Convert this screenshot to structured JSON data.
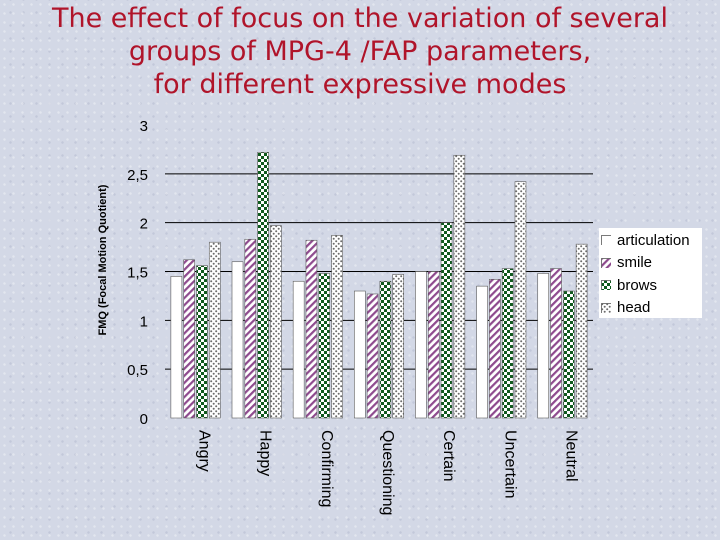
{
  "title_lines": [
    "The effect of focus on the variation of several",
    "groups of MPG-4 /FAP parameters,",
    "for different expressive modes"
  ],
  "chart_data": {
    "type": "bar",
    "ylabel": "FMQ (Focal Motion Quotient)",
    "xlabel": "",
    "ylim": [
      0,
      3
    ],
    "yticks": [
      {
        "value": 0,
        "label": "0"
      },
      {
        "value": 0.5,
        "label": "0,5"
      },
      {
        "value": 1,
        "label": "1"
      },
      {
        "value": 1.5,
        "label": "1,5"
      },
      {
        "value": 2,
        "label": "2"
      },
      {
        "value": 2.5,
        "label": "2,5"
      },
      {
        "value": 3,
        "label": "3"
      }
    ],
    "grid": true,
    "legend_position": "right",
    "categories": [
      "Angry",
      "Happy",
      "Confirming",
      "Questioning",
      "Certain",
      "Uncertain",
      "Neutral"
    ],
    "series": [
      {
        "name": "articulation",
        "pattern": "white",
        "values": [
          1.45,
          1.6,
          1.4,
          1.3,
          1.5,
          1.35,
          1.48
        ]
      },
      {
        "name": "smile",
        "pattern": "diagonal",
        "values": [
          1.62,
          1.83,
          1.82,
          1.27,
          1.5,
          1.42,
          1.53
        ]
      },
      {
        "name": "brows",
        "pattern": "checker",
        "values": [
          1.56,
          2.72,
          1.48,
          1.4,
          2.0,
          1.53,
          1.3
        ]
      },
      {
        "name": "head",
        "pattern": "dots",
        "values": [
          1.8,
          1.97,
          1.87,
          1.47,
          2.69,
          2.42,
          1.78
        ]
      }
    ]
  }
}
